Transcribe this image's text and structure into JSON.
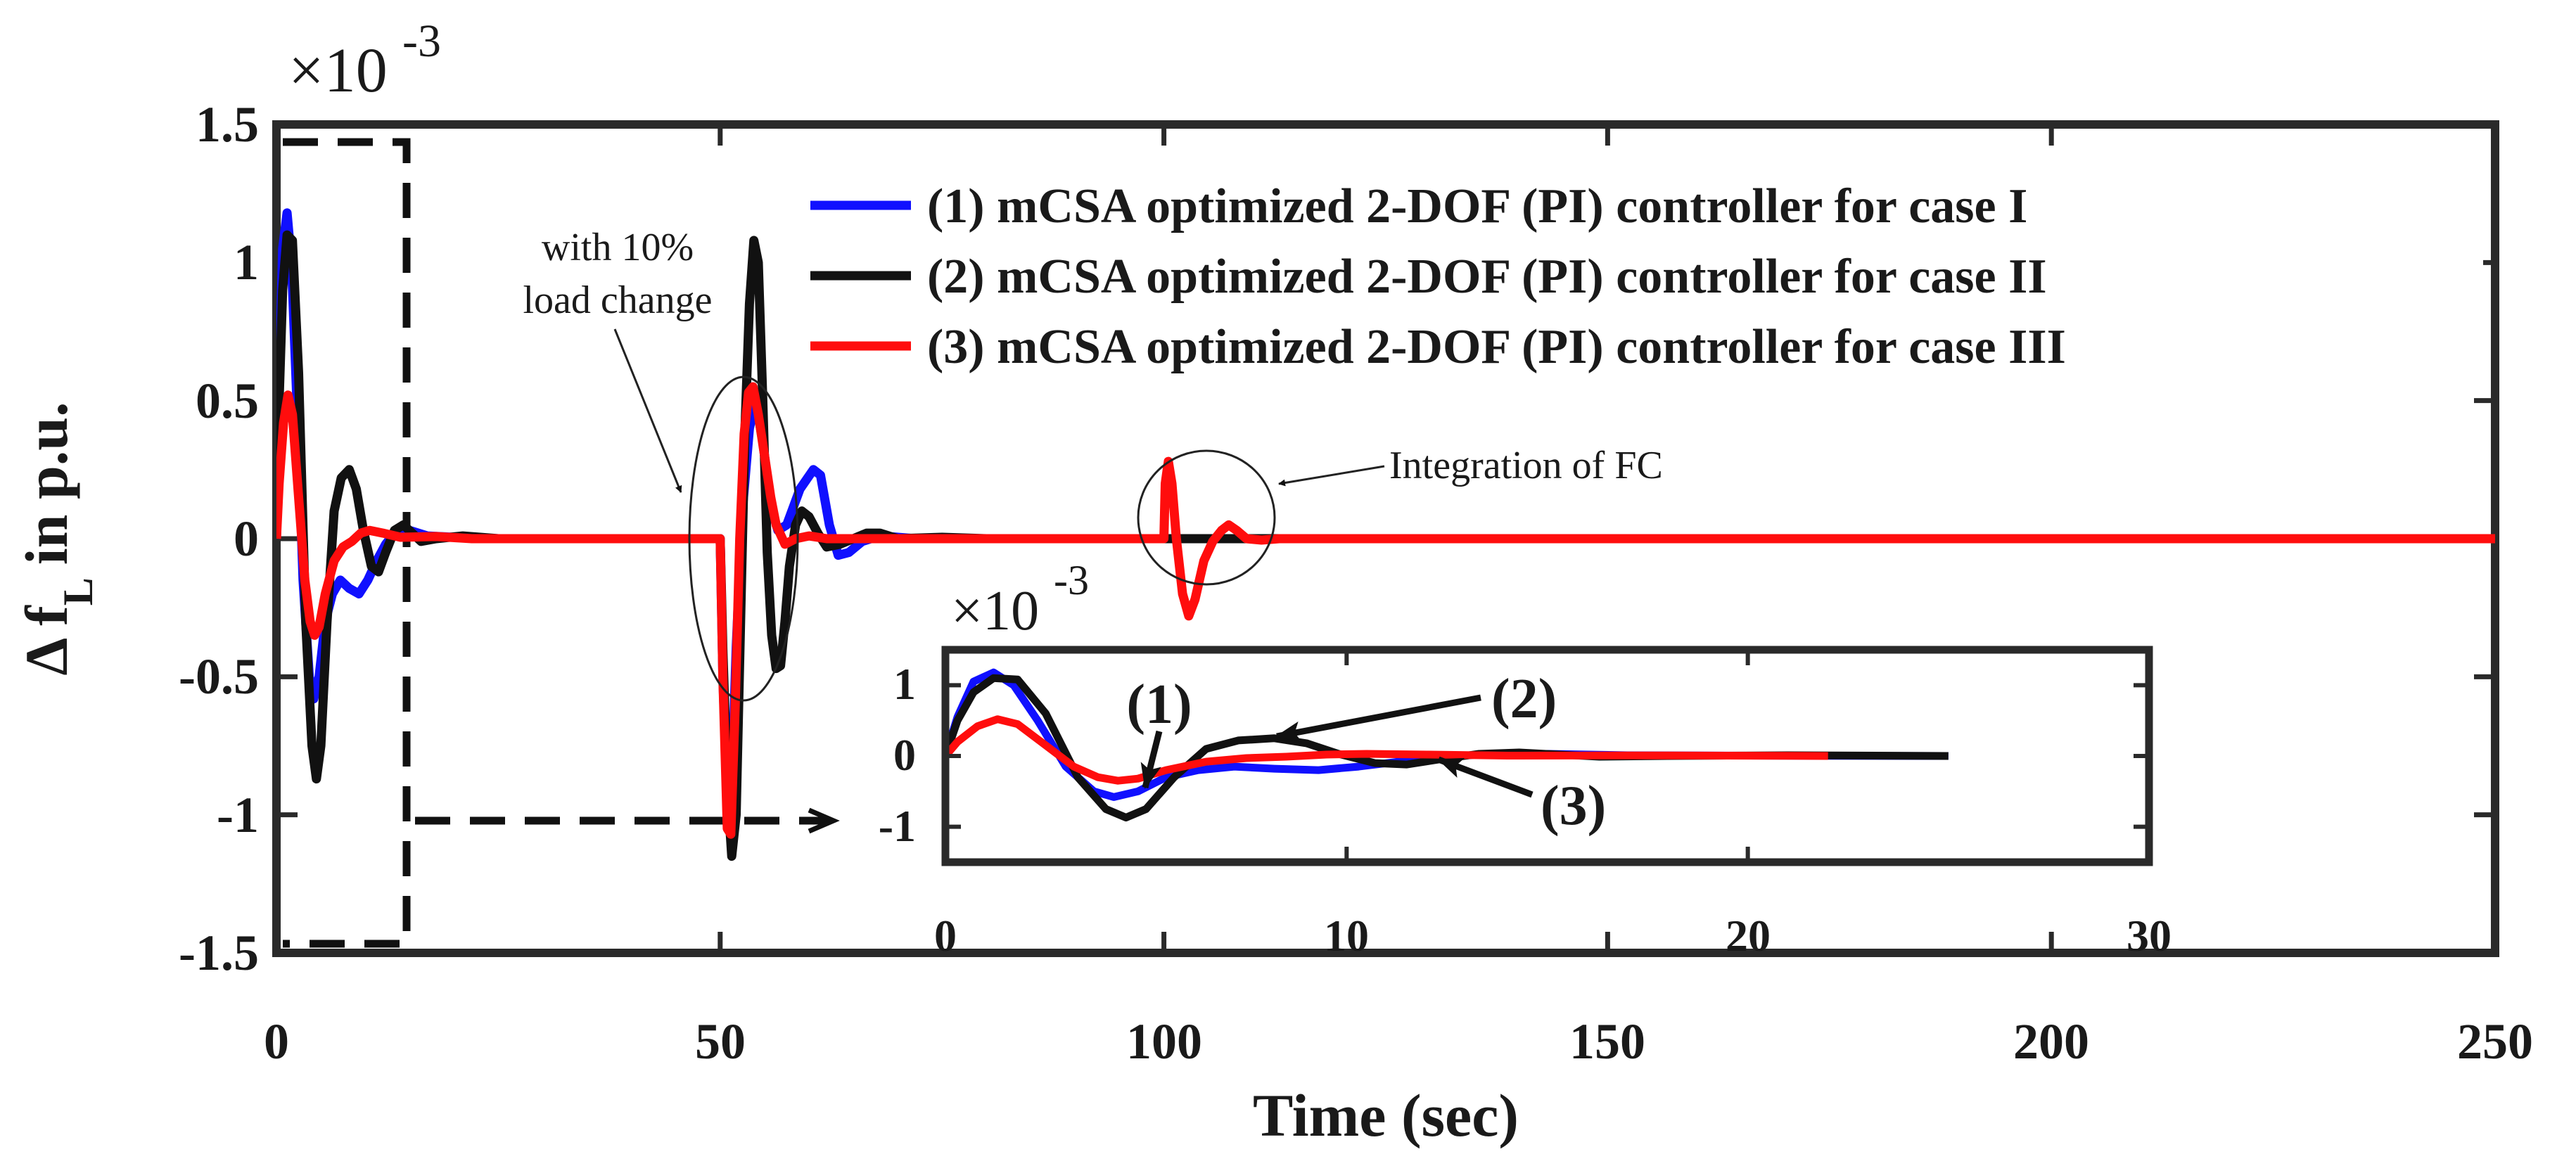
{
  "chart_data": [
    {
      "type": "line",
      "title": "",
      "xlabel": "Time (sec)",
      "ylabel_main": "Δ f",
      "ylabel_sub": "L",
      "ylabel_suffix": "in p.u.",
      "y_multiplier_base": "×10",
      "y_multiplier_exp": "-3",
      "xlim": [
        0,
        250
      ],
      "ylim": [
        -1.5,
        1.5
      ],
      "xticks": [
        0,
        50,
        100,
        150,
        200,
        250
      ],
      "yticks": [
        1.5,
        1,
        0.5,
        0,
        -0.5,
        -1,
        -1.5
      ],
      "yticklabels": [
        "1.5",
        "1",
        "0.5",
        "0",
        "-0.5",
        "-1",
        "-1.5"
      ],
      "xticklabels": [
        "0",
        "50",
        "100",
        "150",
        "200",
        "250"
      ],
      "grid": false,
      "legend_position": "top-right",
      "series": [
        {
          "name": "(1) mCSA optimized 2-DOF (PI) controller for case I",
          "color": "#1010ff",
          "points": [
            [
              0,
              0
            ],
            [
              0.3,
              0.55
            ],
            [
              0.7,
              1.05
            ],
            [
              1.2,
              1.18
            ],
            [
              1.7,
              1.0
            ],
            [
              2.3,
              0.5
            ],
            [
              3,
              -0.15
            ],
            [
              3.7,
              -0.5
            ],
            [
              4.2,
              -0.58
            ],
            [
              4.8,
              -0.5
            ],
            [
              5.5,
              -0.3
            ],
            [
              6.3,
              -0.2
            ],
            [
              7.2,
              -0.15
            ],
            [
              8.2,
              -0.18
            ],
            [
              9.3,
              -0.2
            ],
            [
              10.3,
              -0.15
            ],
            [
              11.3,
              -0.08
            ],
            [
              12.3,
              -0.02
            ],
            [
              13.3,
              0.02
            ],
            [
              15,
              0.03
            ],
            [
              17,
              0.01
            ],
            [
              20,
              0.005
            ],
            [
              25,
              0
            ],
            [
              50,
              0
            ],
            [
              50.3,
              -0.5
            ],
            [
              50.8,
              -0.95
            ],
            [
              51.3,
              -0.9
            ],
            [
              51.8,
              -0.4
            ],
            [
              52.5,
              0.1
            ],
            [
              53.3,
              0.4
            ],
            [
              54,
              0.5
            ],
            [
              54.8,
              0.35
            ],
            [
              55.7,
              0.12
            ],
            [
              56.5,
              0.03
            ],
            [
              57.5,
              0.05
            ],
            [
              59,
              0.18
            ],
            [
              60.5,
              0.25
            ],
            [
              61.3,
              0.23
            ],
            [
              62.3,
              0.05
            ],
            [
              63.3,
              -0.06
            ],
            [
              64.5,
              -0.05
            ],
            [
              66,
              -0.01
            ],
            [
              68,
              0.01
            ],
            [
              72,
              0
            ],
            [
              250,
              0
            ]
          ]
        },
        {
          "name": "(2) mCSA optimized 2-DOF (PI) controller for case II",
          "color": "#111111",
          "points": [
            [
              0,
              0
            ],
            [
              0.3,
              0.5
            ],
            [
              0.7,
              0.9
            ],
            [
              1.2,
              1.1
            ],
            [
              1.8,
              1.08
            ],
            [
              2.5,
              0.6
            ],
            [
              3.3,
              -0.3
            ],
            [
              4,
              -0.75
            ],
            [
              4.5,
              -0.87
            ],
            [
              5,
              -0.75
            ],
            [
              5.7,
              -0.3
            ],
            [
              6.5,
              0.1
            ],
            [
              7.3,
              0.22
            ],
            [
              8.2,
              0.25
            ],
            [
              9,
              0.18
            ],
            [
              9.8,
              0.03
            ],
            [
              10.7,
              -0.1
            ],
            [
              11.5,
              -0.12
            ],
            [
              12.3,
              -0.05
            ],
            [
              13.3,
              0.03
            ],
            [
              14.3,
              0.05
            ],
            [
              15.3,
              0.02
            ],
            [
              16.3,
              -0.01
            ],
            [
              18,
              0
            ],
            [
              21,
              0.01
            ],
            [
              25,
              0
            ],
            [
              50,
              0
            ],
            [
              50.3,
              -0.4
            ],
            [
              50.8,
              -0.9
            ],
            [
              51.3,
              -1.15
            ],
            [
              51.8,
              -1.0
            ],
            [
              52.3,
              -0.3
            ],
            [
              52.8,
              0.4
            ],
            [
              53.3,
              0.85
            ],
            [
              53.8,
              1.08
            ],
            [
              54.3,
              1.0
            ],
            [
              54.8,
              0.5
            ],
            [
              55.3,
              -0.05
            ],
            [
              55.8,
              -0.35
            ],
            [
              56.3,
              -0.47
            ],
            [
              56.8,
              -0.46
            ],
            [
              57.3,
              -0.3
            ],
            [
              57.8,
              -0.1
            ],
            [
              58.5,
              0.05
            ],
            [
              59.2,
              0.1
            ],
            [
              60,
              0.08
            ],
            [
              61,
              0.02
            ],
            [
              62,
              -0.03
            ],
            [
              63.5,
              -0.02
            ],
            [
              65,
              0
            ],
            [
              66.5,
              0.02
            ],
            [
              68,
              0.02
            ],
            [
              70,
              0
            ],
            [
              75,
              0.005
            ],
            [
              80,
              0
            ],
            [
              250,
              0
            ]
          ]
        },
        {
          "name": "(3) mCSA optimized 2-DOF (PI) controller for case III",
          "color": "#ff0d0d",
          "points": [
            [
              0,
              0
            ],
            [
              0.3,
              0.2
            ],
            [
              0.8,
              0.42
            ],
            [
              1.3,
              0.52
            ],
            [
              1.8,
              0.45
            ],
            [
              2.5,
              0.15
            ],
            [
              3.2,
              -0.15
            ],
            [
              3.8,
              -0.3
            ],
            [
              4.3,
              -0.35
            ],
            [
              4.8,
              -0.32
            ],
            [
              5.5,
              -0.2
            ],
            [
              6.5,
              -0.08
            ],
            [
              7.5,
              -0.03
            ],
            [
              8.5,
              -0.01
            ],
            [
              9.5,
              0.02
            ],
            [
              10.5,
              0.03
            ],
            [
              12,
              0.02
            ],
            [
              14,
              0.005
            ],
            [
              18,
              0.008
            ],
            [
              22,
              0
            ],
            [
              50,
              0
            ],
            [
              50.3,
              -0.5
            ],
            [
              50.8,
              -1.05
            ],
            [
              51.2,
              -1.07
            ],
            [
              51.7,
              -0.6
            ],
            [
              52.2,
              0
            ],
            [
              52.7,
              0.38
            ],
            [
              53.2,
              0.53
            ],
            [
              53.7,
              0.55
            ],
            [
              54.3,
              0.45
            ],
            [
              55,
              0.3
            ],
            [
              55.7,
              0.15
            ],
            [
              56.3,
              0.05
            ],
            [
              57.3,
              -0.02
            ],
            [
              58.5,
              0
            ],
            [
              60,
              0.01
            ],
            [
              62,
              0
            ],
            [
              100,
              0
            ],
            [
              100.15,
              0.2
            ],
            [
              100.5,
              0.28
            ],
            [
              100.9,
              0.2
            ],
            [
              101.4,
              0
            ],
            [
              102.1,
              -0.2
            ],
            [
              102.8,
              -0.28
            ],
            [
              103.5,
              -0.22
            ],
            [
              104.5,
              -0.08
            ],
            [
              105.5,
              -0.01
            ],
            [
              106.5,
              0.03
            ],
            [
              107.3,
              0.05
            ],
            [
              108.2,
              0.03
            ],
            [
              109.3,
              0
            ],
            [
              111,
              -0.005
            ],
            [
              113,
              0
            ],
            [
              250,
              0
            ]
          ]
        }
      ]
    },
    {
      "type": "line",
      "title": "inset",
      "xlim": [
        0,
        30
      ],
      "ylim": [
        -1.5,
        1.5
      ],
      "xticks": [
        0,
        10,
        20,
        30
      ],
      "xticklabels": [
        "0",
        "10",
        "20",
        "30"
      ],
      "yticks": [
        1,
        0,
        -1
      ],
      "yticklabels": [
        "1",
        "0",
        "-1"
      ],
      "y_multiplier_base": "×10",
      "y_multiplier_exp": "-3",
      "series": [
        {
          "name": "(1)",
          "color": "#1010ff",
          "ref": 0
        },
        {
          "name": "(2)",
          "color": "#111111",
          "ref": 1
        },
        {
          "name": "(3)",
          "color": "#ff0d0d",
          "ref": 2
        }
      ]
    }
  ],
  "annotations": {
    "load_change_line1": "with 10%",
    "load_change_line2": "load change",
    "fc": "Integration of FC",
    "callout_1": "(1)",
    "callout_2": "(2)",
    "callout_3": "(3)"
  }
}
